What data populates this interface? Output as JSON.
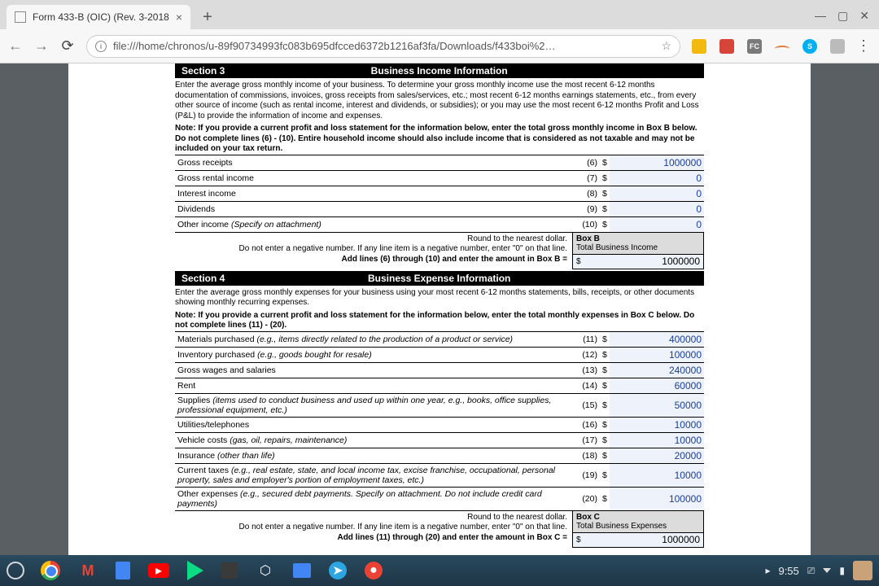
{
  "browser": {
    "tab_title": "Form 433-B (OIC) (Rev. 3-2018",
    "url": "file:///home/chronos/u-89f90734993fc083b695dfcced6372b1216af3fa/Downloads/f433boi%2…",
    "window_buttons": {
      "min": "—",
      "max": "▢",
      "close": "✕"
    }
  },
  "section3": {
    "tag": "Section 3",
    "title": "Business Income Information",
    "intro": "Enter the average gross monthly income of your business. To determine your gross monthly income use the most recent 6-12 months documentation of commissions, invoices, gross receipts from sales/services, etc.; most recent 6-12 months earnings statements, etc., from every other source of income (such as rental income, interest and dividends, or subsidies); or you may use the most recent 6-12 months Profit and Loss (P&L) to provide the  information of income and expenses.",
    "note": "Note: If you provide a current profit and loss statement for the information below, enter the total gross monthly income in Box B below. Do  not complete lines (6) - (10). Entire household income should also include income that is considered as not taxable and may not be included on your tax return.",
    "rows": [
      {
        "label": "Gross receipts",
        "ln": "(6)",
        "val": "1000000"
      },
      {
        "label": "Gross rental income",
        "ln": "(7)",
        "val": "0"
      },
      {
        "label": "Interest income",
        "ln": "(8)",
        "val": "0"
      },
      {
        "label": "Dividends",
        "ln": "(9)",
        "val": "0"
      },
      {
        "label": "Other income",
        "ital": "(Specify on attachment)",
        "ln": "(10)",
        "val": "0"
      }
    ],
    "round_hint": "Round to the nearest dollar.",
    "neg_hint": "Do not enter a negative number. If any line item is a negative number, enter \"0\" on that line.",
    "addline": "Add lines (6) through (10) and enter the amount in Box B =",
    "box_title": "Box B",
    "box_sub": "Total Business Income",
    "box_val": "1000000"
  },
  "section4": {
    "tag": "Section 4",
    "title": "Business Expense Information",
    "intro": "Enter the average gross monthly expenses for your business using your most recent 6-12 months statements, bills, receipts, or other documents showing monthly recurring expenses.",
    "note": "Note: If you provide a current profit and loss statement for the information below, enter the total monthly expenses in Box C below. Do not complete lines (11) - (20).",
    "rows": [
      {
        "label": "Materials purchased",
        "ital": "(e.g., items directly related to the production of a product or service)",
        "ln": "(11)",
        "val": "400000"
      },
      {
        "label": "Inventory purchased",
        "ital": "(e.g., goods bought for resale)",
        "ln": "(12)",
        "val": "100000"
      },
      {
        "label": "Gross wages and salaries",
        "ln": "(13)",
        "val": "240000"
      },
      {
        "label": "Rent",
        "ln": "(14)",
        "val": "60000"
      },
      {
        "label": "Supplies",
        "ital": "(items used to conduct business and used up within one year, e.g., books, office supplies, professional equipment, etc.)",
        "ln": "(15)",
        "val": "50000"
      },
      {
        "label": "Utilities/telephones",
        "ln": "(16)",
        "val": "10000"
      },
      {
        "label": "Vehicle costs",
        "ital": "(gas, oil, repairs, maintenance)",
        "ln": "(17)",
        "val": "10000"
      },
      {
        "label": "Insurance",
        "ital": "(other than life)",
        "ln": "(18)",
        "val": "20000"
      },
      {
        "label": "Current taxes",
        "ital": "(e.g., real estate, state, and local income tax, excise franchise, occupational, personal property, sales and employer's portion of employment taxes, etc.)",
        "ln": "(19)",
        "val": "10000"
      },
      {
        "label": "Other expenses",
        "ital": "(e.g., secured debt payments. Specify on attachment. Do not include credit card payments)",
        "ln": "(20)",
        "val": "100000"
      }
    ],
    "round_hint": "Round to the nearest dollar.",
    "neg_hint": "Do not enter a negative number. If any line item is a negative number, enter \"0\" on that line.",
    "addline": "Add lines (11) through (20) and enter the amount in Box C =",
    "box_title": "Box C",
    "box_sub": "Total Business Expenses",
    "box_val": "1000000"
  },
  "shelf": {
    "clock": "9:55"
  },
  "colors": {
    "input_bg": "#eef2fb",
    "value_color": "#1a3e99"
  }
}
